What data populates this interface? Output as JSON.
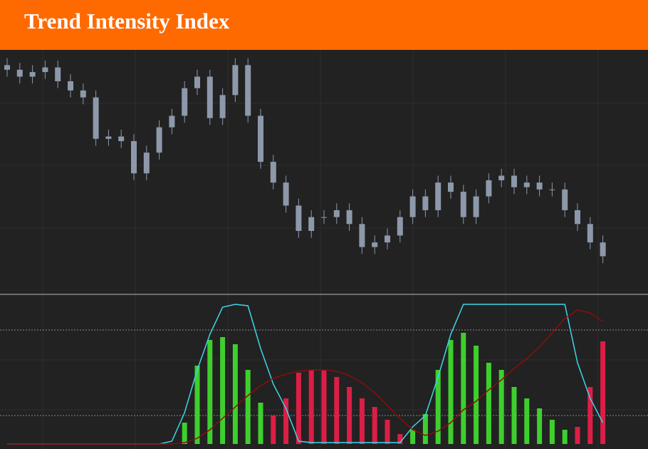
{
  "title": "Trend Intensity Index",
  "chart_data": [
    {
      "type": "candlestick",
      "color": "#8d99aa",
      "ylim": [
        0,
        104
      ],
      "open": [
        98,
        96,
        93,
        95,
        97,
        91,
        87,
        84,
        66,
        67,
        65,
        51,
        60,
        71,
        76,
        88,
        93,
        75,
        85,
        98,
        76,
        56,
        47,
        37,
        26,
        32,
        32,
        35,
        29,
        19,
        21,
        24,
        32,
        41,
        35,
        47,
        43,
        32,
        41,
        48,
        50,
        45,
        47,
        44,
        44,
        35,
        29,
        21
      ],
      "high": [
        101,
        99,
        98,
        100,
        100,
        94,
        90,
        87,
        70,
        70,
        68,
        63,
        74,
        79,
        91,
        96,
        96,
        88,
        101,
        101,
        79,
        59,
        50,
        40,
        35,
        35,
        38,
        38,
        32,
        24,
        27,
        35,
        44,
        44,
        50,
        50,
        46,
        44,
        51,
        53,
        53,
        50,
        50,
        47,
        47,
        38,
        32,
        24
      ],
      "low": [
        93,
        90,
        90,
        92,
        88,
        84,
        81,
        63,
        63,
        62,
        48,
        48,
        57,
        68,
        73,
        85,
        72,
        72,
        82,
        73,
        53,
        44,
        34,
        23,
        23,
        29,
        29,
        26,
        16,
        16,
        18,
        21,
        29,
        32,
        32,
        40,
        29,
        29,
        38,
        45,
        42,
        42,
        41,
        41,
        32,
        26,
        18,
        12
      ],
      "close": [
        96,
        93,
        95,
        97,
        91,
        87,
        84,
        66,
        67,
        65,
        51,
        60,
        71,
        76,
        88,
        93,
        75,
        85,
        98,
        76,
        56,
        47,
        37,
        26,
        32,
        32,
        35,
        29,
        19,
        21,
        24,
        32,
        41,
        35,
        47,
        43,
        32,
        41,
        48,
        50,
        45,
        47,
        44,
        44,
        35,
        29,
        21,
        15
      ]
    },
    {
      "type": "indicator",
      "ylim": [
        0,
        100
      ],
      "levels": [
        20,
        80
      ],
      "level_color": "#888",
      "series": [
        {
          "type": "bar",
          "color": "#3ecf2e",
          "values": [
            null,
            null,
            null,
            null,
            null,
            null,
            null,
            null,
            null,
            null,
            null,
            null,
            null,
            null,
            15,
            55,
            73,
            75,
            70,
            52,
            29,
            null,
            null,
            null,
            null,
            null,
            null,
            null,
            null,
            null,
            null,
            null,
            10,
            21,
            52,
            73,
            78,
            69,
            57,
            52,
            40,
            32,
            25,
            17,
            10,
            null,
            null,
            null
          ]
        },
        {
          "type": "bar",
          "color": "#dc1e46",
          "values": [
            null,
            null,
            null,
            null,
            null,
            null,
            null,
            null,
            null,
            null,
            null,
            null,
            null,
            null,
            null,
            null,
            null,
            null,
            null,
            null,
            null,
            20,
            32,
            50,
            52,
            52,
            47,
            40,
            32,
            26,
            17,
            7,
            null,
            null,
            null,
            null,
            null,
            null,
            null,
            null,
            null,
            null,
            null,
            null,
            null,
            12,
            40,
            72
          ]
        },
        {
          "type": "line",
          "color": "#3fd6e8",
          "values": [
            0,
            0,
            0,
            0,
            0,
            0,
            0,
            0,
            0,
            0,
            0,
            0,
            0,
            2,
            22,
            52,
            77,
            96,
            98,
            97,
            67,
            42,
            25,
            2,
            1,
            1,
            1,
            1,
            1,
            1,
            1,
            1,
            12,
            20,
            47,
            77,
            98,
            98,
            98,
            98,
            98,
            98,
            98,
            98,
            98,
            57,
            32,
            15
          ]
        },
        {
          "type": "line",
          "color": "#8b0d0d",
          "values": [
            0,
            0,
            0,
            0,
            0,
            0,
            0,
            0,
            0,
            0,
            0,
            0,
            0,
            0,
            1,
            4,
            10,
            18,
            26,
            34,
            41,
            46,
            49,
            51,
            52,
            52,
            51,
            48,
            43,
            36,
            27,
            18,
            10,
            6,
            9,
            15,
            24,
            30,
            38,
            45,
            53,
            60,
            68,
            78,
            88,
            94,
            92,
            86
          ]
        }
      ]
    }
  ]
}
